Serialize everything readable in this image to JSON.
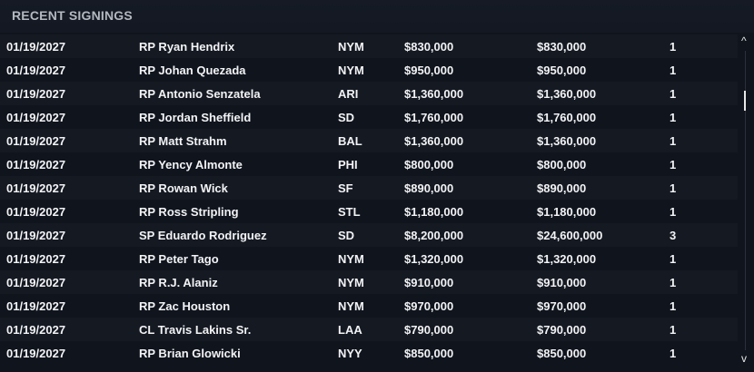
{
  "panel": {
    "title": "RECENT SIGNINGS"
  },
  "rows": [
    [
      "01/19/2027",
      "RP Ryan Hendrix",
      "NYM",
      "$830,000",
      "$830,000",
      "1"
    ],
    [
      "01/19/2027",
      "RP Johan Quezada",
      "NYM",
      "$950,000",
      "$950,000",
      "1"
    ],
    [
      "01/19/2027",
      "RP Antonio Senzatela",
      "ARI",
      "$1,360,000",
      "$1,360,000",
      "1"
    ],
    [
      "01/19/2027",
      "RP Jordan Sheffield",
      "SD",
      "$1,760,000",
      "$1,760,000",
      "1"
    ],
    [
      "01/19/2027",
      "RP Matt Strahm",
      "BAL",
      "$1,360,000",
      "$1,360,000",
      "1"
    ],
    [
      "01/19/2027",
      "RP Yency Almonte",
      "PHI",
      "$800,000",
      "$800,000",
      "1"
    ],
    [
      "01/19/2027",
      "RP Rowan Wick",
      "SF",
      "$890,000",
      "$890,000",
      "1"
    ],
    [
      "01/19/2027",
      "RP Ross Stripling",
      "STL",
      "$1,180,000",
      "$1,180,000",
      "1"
    ],
    [
      "01/19/2027",
      "SP Eduardo Rodriguez",
      "SD",
      "$8,200,000",
      "$24,600,000",
      "3"
    ],
    [
      "01/19/2027",
      "RP Peter Tago",
      "NYM",
      "$1,320,000",
      "$1,320,000",
      "1"
    ],
    [
      "01/19/2027",
      "RP R.J. Alaniz",
      "NYM",
      "$910,000",
      "$910,000",
      "1"
    ],
    [
      "01/19/2027",
      "RP Zac Houston",
      "NYM",
      "$970,000",
      "$970,000",
      "1"
    ],
    [
      "01/19/2027",
      "CL Travis Lakins Sr.",
      "LAA",
      "$790,000",
      "$790,000",
      "1"
    ],
    [
      "01/19/2027",
      "RP Brian Glowicki",
      "NYY",
      "$850,000",
      "$850,000",
      "1"
    ]
  ],
  "scrollbar": {
    "up_icon": "chevron-up-icon",
    "down_icon": "chevron-down-icon",
    "up": "^",
    "down": "v"
  }
}
